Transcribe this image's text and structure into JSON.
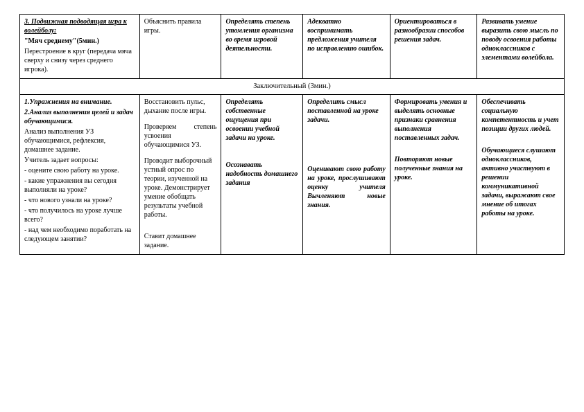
{
  "row1": {
    "c1": {
      "title": "3. Подвижная подводящая игра к волейболу:",
      "quote": "\"Мяч среднему\"(5мин.)",
      "desc": "Перестроение в круг (передача мяча сверху и снизу через среднего игрока)."
    },
    "c2": "Объяснить правила игры.",
    "c3": "Определять степень утомления организма во время игровой деятельности.",
    "c4": "Адекватно воспринимать предложения учителя по исправлению ошибок.",
    "c5": "Ориентироваться в разнообразии способов решения задач.",
    "c6": "Развивать умение выразить свою мысль по поводу освоения работы одноклассников с элементами волейбола."
  },
  "section": "Заключительный (3мин.)",
  "row2": {
    "c1": {
      "l1": "1.Упражнения на внимание.",
      "l2": "2.Анализ выполнения целей и задач обучающимися.",
      "l3": "Анализ выполнения УЗ обучающимися, рефлексия, домашнее задание.",
      "l4": "Учитель задает вопросы:",
      "l5": "- оцените свою работу на уроке.",
      "l6": "- какие упражнения вы сегодня выполняли на уроке?",
      "l7": "- что нового узнали на уроке?",
      "l8": "- что получилось на уроке лучше всего?",
      "l9": "- над чем необходимо поработать на следующем занятии?"
    },
    "c2": {
      "p1": "Восстановить пульс, дыхание после игры.",
      "p2": "Проверяем степень усвоения обучающимися УЗ.",
      "p3": "Проводит выборочный устный опрос по теории, изученной на уроке. Демонстрирует умение обобщать результаты учебной работы.",
      "p4": "Ставит домашнее задание."
    },
    "c3": {
      "p1": "Определять собственные ощущения при освоении учебной задачи на уроке.",
      "p2": "Осознавать надобность домашнего задания"
    },
    "c4": {
      "p1": "Определить смысл поставленной на уроке задачи.",
      "p2": "Оценивают свою работу на уроке, прослушивают оценку учителя Вычленяют новые знания."
    },
    "c5": {
      "p1": "Формировать умения и выделять основные признаки сравнения выполнения поставленных задач.",
      "p2": "Повторяют новые полученные знания на уроке."
    },
    "c6": {
      "p1": "Обеспечивать социальную компетентность и учет позиции других людей.",
      "p2": "Обучающиеся слушают одноклассников, активно участвуют в решении коммуникативной задачи, выражают свое мнение об итогах работы на уроке."
    }
  }
}
